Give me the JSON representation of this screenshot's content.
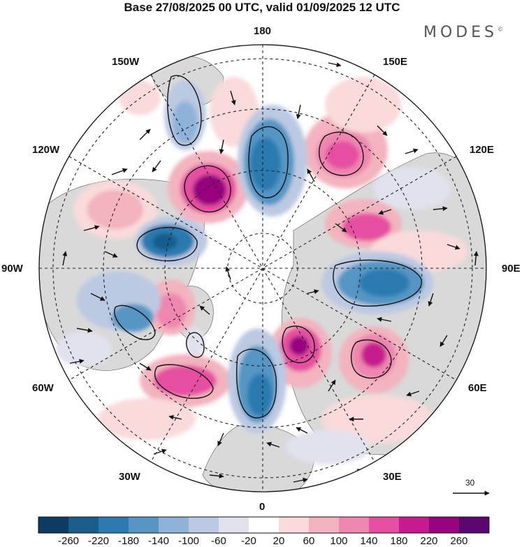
{
  "title": "Base 27/08/2025 00 UTC, valid 01/09/2025 12 UTC",
  "brand": "MODES",
  "brand_mark": "©",
  "longitude_labels": {
    "lon_180": "180",
    "lon_150w": "150W",
    "lon_150e": "150E",
    "lon_120w": "120W",
    "lon_120e": "120E",
    "lon_90w": "90W",
    "lon_90e": "90E",
    "lon_60w": "60W",
    "lon_60e": "60E",
    "lon_30w": "30W",
    "lon_30e": "30E",
    "lon_0": "0"
  },
  "reference_vector": {
    "value": "30"
  },
  "colorbar": {
    "colors": [
      "#0d3c63",
      "#195d8c",
      "#2c7ab0",
      "#5596c4",
      "#8fb2d8",
      "#bcc9e2",
      "#e2e2ef",
      "#ffffff",
      "#fadadb",
      "#f3b3bf",
      "#ef86b0",
      "#e64fa1",
      "#c61a8e",
      "#98037f",
      "#5c0672"
    ],
    "labels": [
      "-260",
      "-220",
      "-180",
      "-140",
      "-100",
      "-60",
      "-20",
      "20",
      "60",
      "100",
      "140",
      "180",
      "220",
      "260"
    ]
  },
  "colors": {
    "land": "#d9d9d9",
    "ocean": "#ffffff",
    "grid": "#333333"
  }
}
